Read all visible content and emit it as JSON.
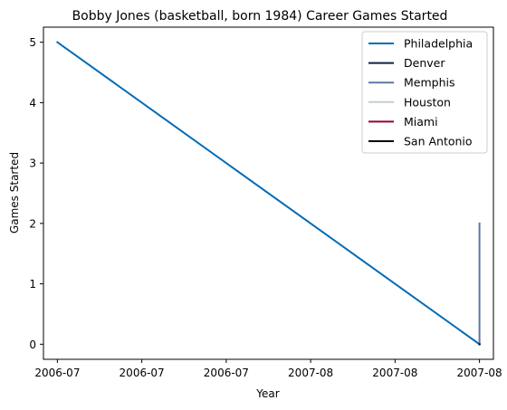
{
  "chart_data": {
    "type": "line",
    "title": "Bobby Jones (basketball, born 1984) Career Games Started",
    "xlabel": "Year",
    "ylabel": "Games Started",
    "x_tick_labels": [
      "2006-07",
      "2006-07",
      "2006-07",
      "2007-08",
      "2007-08",
      "2007-08"
    ],
    "y_ticks": [
      0,
      1,
      2,
      3,
      4,
      5
    ],
    "xlim": [
      -0.033,
      1.033
    ],
    "ylim": [
      -0.25,
      5.25
    ],
    "grid": false,
    "legend_position": "top-right",
    "series": [
      {
        "name": "Philadelphia",
        "color": "#006BB6",
        "x": [
          0,
          1
        ],
        "y": [
          5,
          0
        ]
      },
      {
        "name": "Denver",
        "color": "#0E2240",
        "x": [
          1,
          1
        ],
        "y": [
          0,
          0
        ]
      },
      {
        "name": "Memphis",
        "color": "#5D76A9",
        "x": [
          1,
          1
        ],
        "y": [
          0,
          2
        ]
      },
      {
        "name": "Houston",
        "color": "#C4CED4",
        "x": [
          1,
          1
        ],
        "y": [
          0,
          0
        ]
      },
      {
        "name": "Miami",
        "color": "#98002E",
        "x": [
          1,
          1
        ],
        "y": [
          0,
          0
        ]
      },
      {
        "name": "San Antonio",
        "color": "#000000",
        "x": [
          1,
          1
        ],
        "y": [
          0,
          0
        ]
      }
    ]
  }
}
